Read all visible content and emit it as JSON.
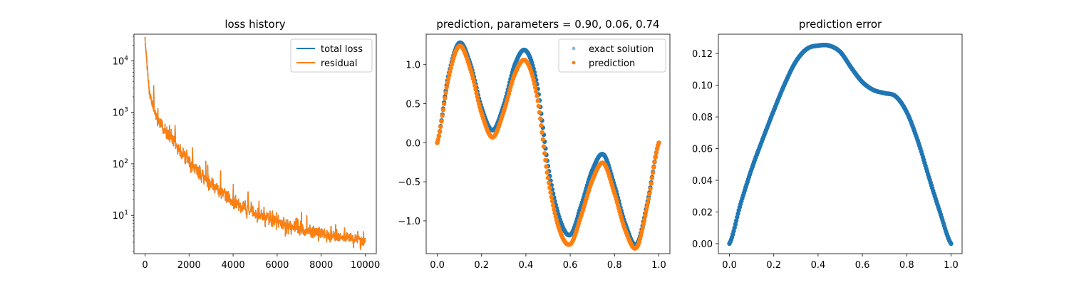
{
  "colors": {
    "blue": "#1f77b4",
    "orange": "#ff7f0e",
    "light_blue": "#8fbbd9"
  },
  "chart_data": [
    {
      "type": "line",
      "title": "loss history",
      "xlabel": "",
      "ylabel": "",
      "yscale": "log",
      "xlim": [
        -500,
        10500
      ],
      "ylim": [
        1.8,
        33000
      ],
      "grid": false,
      "legend": "top-right",
      "xticks": [
        0,
        2000,
        4000,
        6000,
        8000,
        10000
      ],
      "xtick_labels": [
        "0",
        "2000",
        "4000",
        "6000",
        "8000",
        "10000"
      ],
      "yticks": [
        10,
        100,
        1000,
        10000
      ],
      "ytick_labels": [
        {
          "base": "10",
          "exp": "1"
        },
        {
          "base": "10",
          "exp": "2"
        },
        {
          "base": "10",
          "exp": "3"
        },
        {
          "base": "10",
          "exp": "4"
        }
      ],
      "series": [
        {
          "name": "total loss",
          "color": "#1f77b4",
          "x": [
            0,
            100,
            200,
            400,
            600,
            800,
            1000,
            1500,
            2000,
            2500,
            3000,
            3500,
            4000,
            5000,
            6000,
            7000,
            8000,
            9000,
            10000
          ],
          "y": [
            25000,
            8000,
            2500,
            1200,
            750,
            500,
            400,
            200,
            110,
            65,
            40,
            28,
            18,
            11,
            7.5,
            5.5,
            4.5,
            3.8,
            3.2
          ]
        },
        {
          "name": "residual",
          "color": "#ff7f0e",
          "x": [
            0,
            100,
            200,
            400,
            600,
            800,
            1000,
            1500,
            2000,
            2500,
            3000,
            3500,
            4000,
            5000,
            6000,
            7000,
            8000,
            9000,
            10000
          ],
          "y": [
            25000,
            8000,
            2500,
            1200,
            750,
            500,
            400,
            200,
            110,
            65,
            40,
            28,
            18,
            11,
            7.5,
            5.5,
            4.5,
            3.8,
            3.2
          ]
        }
      ]
    },
    {
      "type": "scatter",
      "title": "prediction, parameters = 0.90, 0.06, 0.74",
      "xlabel": "",
      "ylabel": "",
      "xlim": [
        -0.05,
        1.05
      ],
      "ylim": [
        -1.42,
        1.39
      ],
      "grid": false,
      "legend": "top-right",
      "xticks": [
        0,
        0.2,
        0.4,
        0.6,
        0.8,
        1.0
      ],
      "xtick_labels": [
        "0.0",
        "0.2",
        "0.4",
        "0.6",
        "0.8",
        "1.0"
      ],
      "yticks": [
        -1.0,
        -0.5,
        0.0,
        0.5,
        1.0
      ],
      "ytick_labels": [
        "−1.0",
        "−0.5",
        "0.0",
        "0.5",
        "1.0"
      ],
      "series": [
        {
          "name": "exact solution",
          "color": "#1f77b4",
          "legend_color": "#8fbbd9",
          "x": [
            0,
            0.05,
            0.1,
            0.15,
            0.2,
            0.25,
            0.3,
            0.35,
            0.4,
            0.45,
            0.5,
            0.55,
            0.6,
            0.65,
            0.7,
            0.75,
            0.8,
            0.85,
            0.9,
            0.95,
            1.0
          ],
          "y": [
            0,
            0.85,
            1.28,
            1.0,
            0.45,
            0.16,
            0.48,
            1.0,
            1.18,
            0.75,
            -0.3,
            -0.95,
            -1.18,
            -0.8,
            -0.35,
            -0.15,
            -0.55,
            -1.05,
            -1.3,
            -0.75,
            0
          ]
        },
        {
          "name": "prediction",
          "color": "#ff7f0e",
          "legend_color": "#ff7f0e",
          "x": [
            0,
            0.05,
            0.1,
            0.15,
            0.2,
            0.25,
            0.3,
            0.35,
            0.4,
            0.45,
            0.5,
            0.55,
            0.6,
            0.65,
            0.7,
            0.75,
            0.8,
            0.85,
            0.9,
            0.95,
            1.0
          ],
          "y": [
            0,
            0.82,
            1.24,
            0.94,
            0.38,
            0.07,
            0.4,
            0.88,
            1.05,
            0.6,
            -0.45,
            -1.1,
            -1.3,
            -0.93,
            -0.48,
            -0.26,
            -0.65,
            -1.13,
            -1.34,
            -0.77,
            0
          ]
        }
      ]
    },
    {
      "type": "scatter",
      "title": "prediction error",
      "xlabel": "",
      "ylabel": "",
      "xlim": [
        -0.05,
        1.05
      ],
      "ylim": [
        -0.0063,
        0.1322
      ],
      "grid": false,
      "legend": "none",
      "xticks": [
        0,
        0.2,
        0.4,
        0.6,
        0.8,
        1.0
      ],
      "xtick_labels": [
        "0.0",
        "0.2",
        "0.4",
        "0.6",
        "0.8",
        "1.0"
      ],
      "yticks": [
        0,
        0.02,
        0.04,
        0.06,
        0.08,
        0.1,
        0.12
      ],
      "ytick_labels": [
        "0.00",
        "0.02",
        "0.04",
        "0.06",
        "0.08",
        "0.10",
        "0.12"
      ],
      "series": [
        {
          "color": "#1f77b4",
          "x": [
            0,
            0.05,
            0.1,
            0.15,
            0.2,
            0.25,
            0.3,
            0.35,
            0.4,
            0.45,
            0.5,
            0.55,
            0.6,
            0.65,
            0.7,
            0.75,
            0.8,
            0.85,
            0.9,
            0.95,
            1.0
          ],
          "y": [
            0,
            0.025,
            0.047,
            0.066,
            0.084,
            0.101,
            0.115,
            0.123,
            0.125,
            0.125,
            0.121,
            0.111,
            0.102,
            0.097,
            0.095,
            0.093,
            0.083,
            0.065,
            0.042,
            0.02,
            0
          ]
        }
      ]
    }
  ]
}
